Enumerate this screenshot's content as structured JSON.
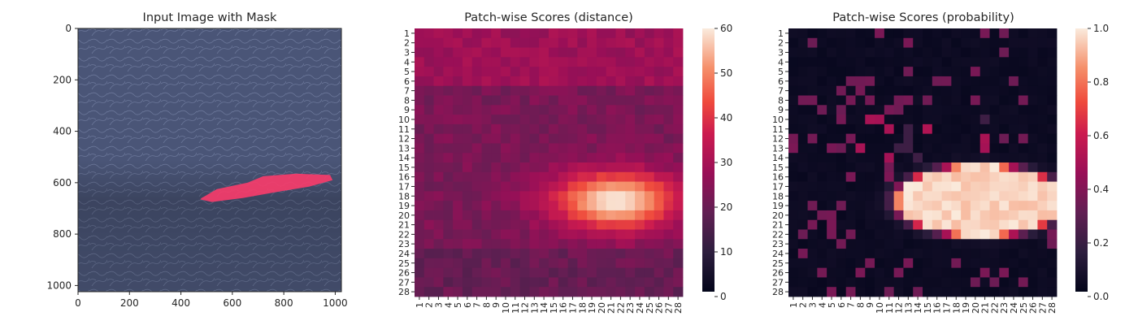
{
  "chart_data": [
    {
      "type": "image",
      "title": "Input Image with Mask",
      "xlim": [
        0,
        1024
      ],
      "ylim": [
        1024,
        0
      ],
      "xticks": [
        0,
        200,
        400,
        600,
        800,
        1000
      ],
      "yticks": [
        0,
        200,
        400,
        600,
        800,
        1000
      ],
      "mask_outline": {
        "label_hidden": true,
        "color": "#ff3b6b",
        "points": [
          [
            480,
            660
          ],
          [
            540,
            625
          ],
          [
            660,
            600
          ],
          [
            720,
            575
          ],
          [
            850,
            565
          ],
          [
            980,
            570
          ],
          [
            990,
            590
          ],
          [
            900,
            615
          ],
          [
            780,
            635
          ],
          [
            640,
            660
          ],
          [
            520,
            675
          ],
          [
            475,
            665
          ]
        ]
      }
    },
    {
      "type": "heatmap",
      "title": "Patch-wise Scores (distance)",
      "rows": [
        "1",
        "2",
        "3",
        "4",
        "5",
        "6",
        "7",
        "8",
        "9",
        "10",
        "11",
        "12",
        "13",
        "14",
        "15",
        "16",
        "17",
        "18",
        "19",
        "20",
        "21",
        "22",
        "23",
        "24",
        "25",
        "26",
        "27",
        "28"
      ],
      "cols": [
        "1",
        "2",
        "3",
        "4",
        "5",
        "6",
        "7",
        "8",
        "9",
        "10",
        "11",
        "12",
        "13",
        "14",
        "15",
        "16",
        "17",
        "18",
        "19",
        "20",
        "21",
        "22",
        "23",
        "24",
        "25",
        "26",
        "27",
        "28"
      ],
      "vmin": 0,
      "vmax": 60,
      "colorbar_ticks": [
        0,
        10,
        20,
        30,
        40,
        50,
        60
      ],
      "cmap": "rocket",
      "background_value": 22,
      "blob": {
        "row_center": 18.5,
        "col_center": 21.5,
        "row_radius": 3.5,
        "col_radius": 7.5,
        "peak_value": 60
      }
    },
    {
      "type": "heatmap",
      "title": "Patch-wise Scores (probability)",
      "rows": [
        "1",
        "2",
        "3",
        "4",
        "5",
        "6",
        "7",
        "8",
        "9",
        "10",
        "11",
        "12",
        "13",
        "14",
        "15",
        "16",
        "17",
        "18",
        "19",
        "20",
        "21",
        "22",
        "23",
        "24",
        "25",
        "26",
        "27",
        "28"
      ],
      "cols": [
        "1",
        "2",
        "3",
        "4",
        "5",
        "6",
        "7",
        "8",
        "9",
        "10",
        "11",
        "12",
        "13",
        "14",
        "15",
        "16",
        "17",
        "18",
        "19",
        "20",
        "21",
        "22",
        "23",
        "24",
        "25",
        "26",
        "27",
        "28"
      ],
      "vmin": 0,
      "vmax": 1,
      "colorbar_ticks": [
        "0.0",
        "0.2",
        "0.4",
        "0.6",
        "0.8",
        "1.0"
      ],
      "cmap": "rocket",
      "background_value": 0.02,
      "blob": {
        "row_center": 18.5,
        "col_center": 20.5,
        "row_radius": 3.6,
        "col_radius": 8.5,
        "peak_value": 1.0
      }
    }
  ]
}
